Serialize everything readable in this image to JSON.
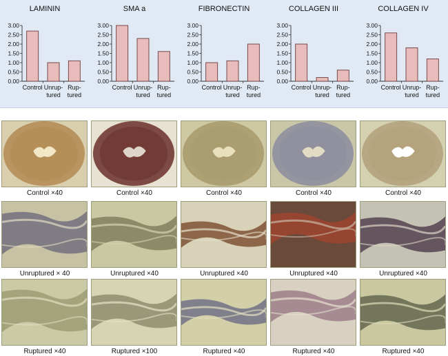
{
  "chart_data": [
    {
      "type": "bar",
      "title": "LAMININ",
      "categories": [
        "Control",
        "Unruptured",
        "Ruptured"
      ],
      "category_labels": [
        [
          "Control"
        ],
        [
          "Unrup-",
          "tured"
        ],
        [
          "Rup-",
          "tured"
        ]
      ],
      "values": [
        2.7,
        1.0,
        1.1
      ],
      "ylim": [
        0,
        3.0
      ],
      "yticks": [
        "0.00",
        "0.50",
        "1.00",
        "1.50",
        "2.00",
        "2.50",
        "3.00"
      ],
      "bar_color": "#e9bcbc"
    },
    {
      "type": "bar",
      "title": "SMA a",
      "categories": [
        "Control",
        "Unruptured",
        "Ruptured"
      ],
      "category_labels": [
        [
          "Control"
        ],
        [
          "Unrup-",
          "tured"
        ],
        [
          "Rup-",
          "tured"
        ]
      ],
      "values": [
        3.0,
        2.3,
        1.6
      ],
      "ylim": [
        0,
        3.0
      ],
      "yticks": [
        "0.00",
        "0.50",
        "1.00",
        "1.50",
        "2.00",
        "2.50",
        "3.00"
      ],
      "bar_color": "#e9bcbc"
    },
    {
      "type": "bar",
      "title": "FIBRONECTIN",
      "categories": [
        "Control",
        "Unruptured",
        "Ruptured"
      ],
      "category_labels": [
        [
          "Control"
        ],
        [
          "Unrup-",
          "tured"
        ],
        [
          "Rup-",
          "tured"
        ]
      ],
      "values": [
        1.0,
        1.1,
        2.0
      ],
      "ylim": [
        0,
        3.0
      ],
      "yticks": [
        "0.00",
        "0.50",
        "1.00",
        "1.50",
        "2.00",
        "2.50",
        "3.00"
      ],
      "bar_color": "#e9bcbc"
    },
    {
      "type": "bar",
      "title": "COLLAGEN III",
      "categories": [
        "Control",
        "Unruptured",
        "Ruptured"
      ],
      "category_labels": [
        [
          "Control"
        ],
        [
          "Unrup-",
          "tured"
        ],
        [
          "Rup-",
          "tured"
        ]
      ],
      "values": [
        2.0,
        0.2,
        0.6
      ],
      "ylim": [
        0,
        3.0
      ],
      "yticks": [
        "0.00",
        "0.50",
        "1.00",
        "1.50",
        "2.00",
        "2.50",
        "3.00"
      ],
      "bar_color": "#e9bcbc"
    },
    {
      "type": "bar",
      "title": "COLLAGEN IV",
      "categories": [
        "Control",
        "Unruptured",
        "Ruptured"
      ],
      "category_labels": [
        [
          "Control"
        ],
        [
          "Unrup-",
          "tured"
        ],
        [
          "Rup-",
          "tured"
        ]
      ],
      "values": [
        2.6,
        1.8,
        1.2
      ],
      "ylim": [
        0,
        3.0
      ],
      "yticks": [
        "0.00",
        "0.50",
        "1.00",
        "1.50",
        "2.00",
        "2.50",
        "3.00"
      ],
      "bar_color": "#e9bcbc"
    }
  ],
  "micrographs": {
    "rows": [
      {
        "captions": [
          "Control ×40",
          "Control ×40",
          "Control ×40",
          "Control ×40",
          "Control ×40"
        ]
      },
      {
        "captions": [
          "Unruptured × 40",
          "Unruptured ×40",
          "Unruptured ×40",
          "Unruptured ×40",
          "Unruptured ×40"
        ]
      },
      {
        "captions": [
          "Ruptured ×40",
          "Ruptured ×100",
          "Ruptured ×40",
          "Ruptured ×40",
          "Ruptured ×40"
        ]
      }
    ]
  },
  "colors": {
    "panel_bg": "#e1e9f4",
    "bar": "#e9bcbc",
    "stain_brown": "#8b5a2b",
    "stain_dark": "#5a2e2a",
    "tissue_pale": "#d6d2a6"
  }
}
